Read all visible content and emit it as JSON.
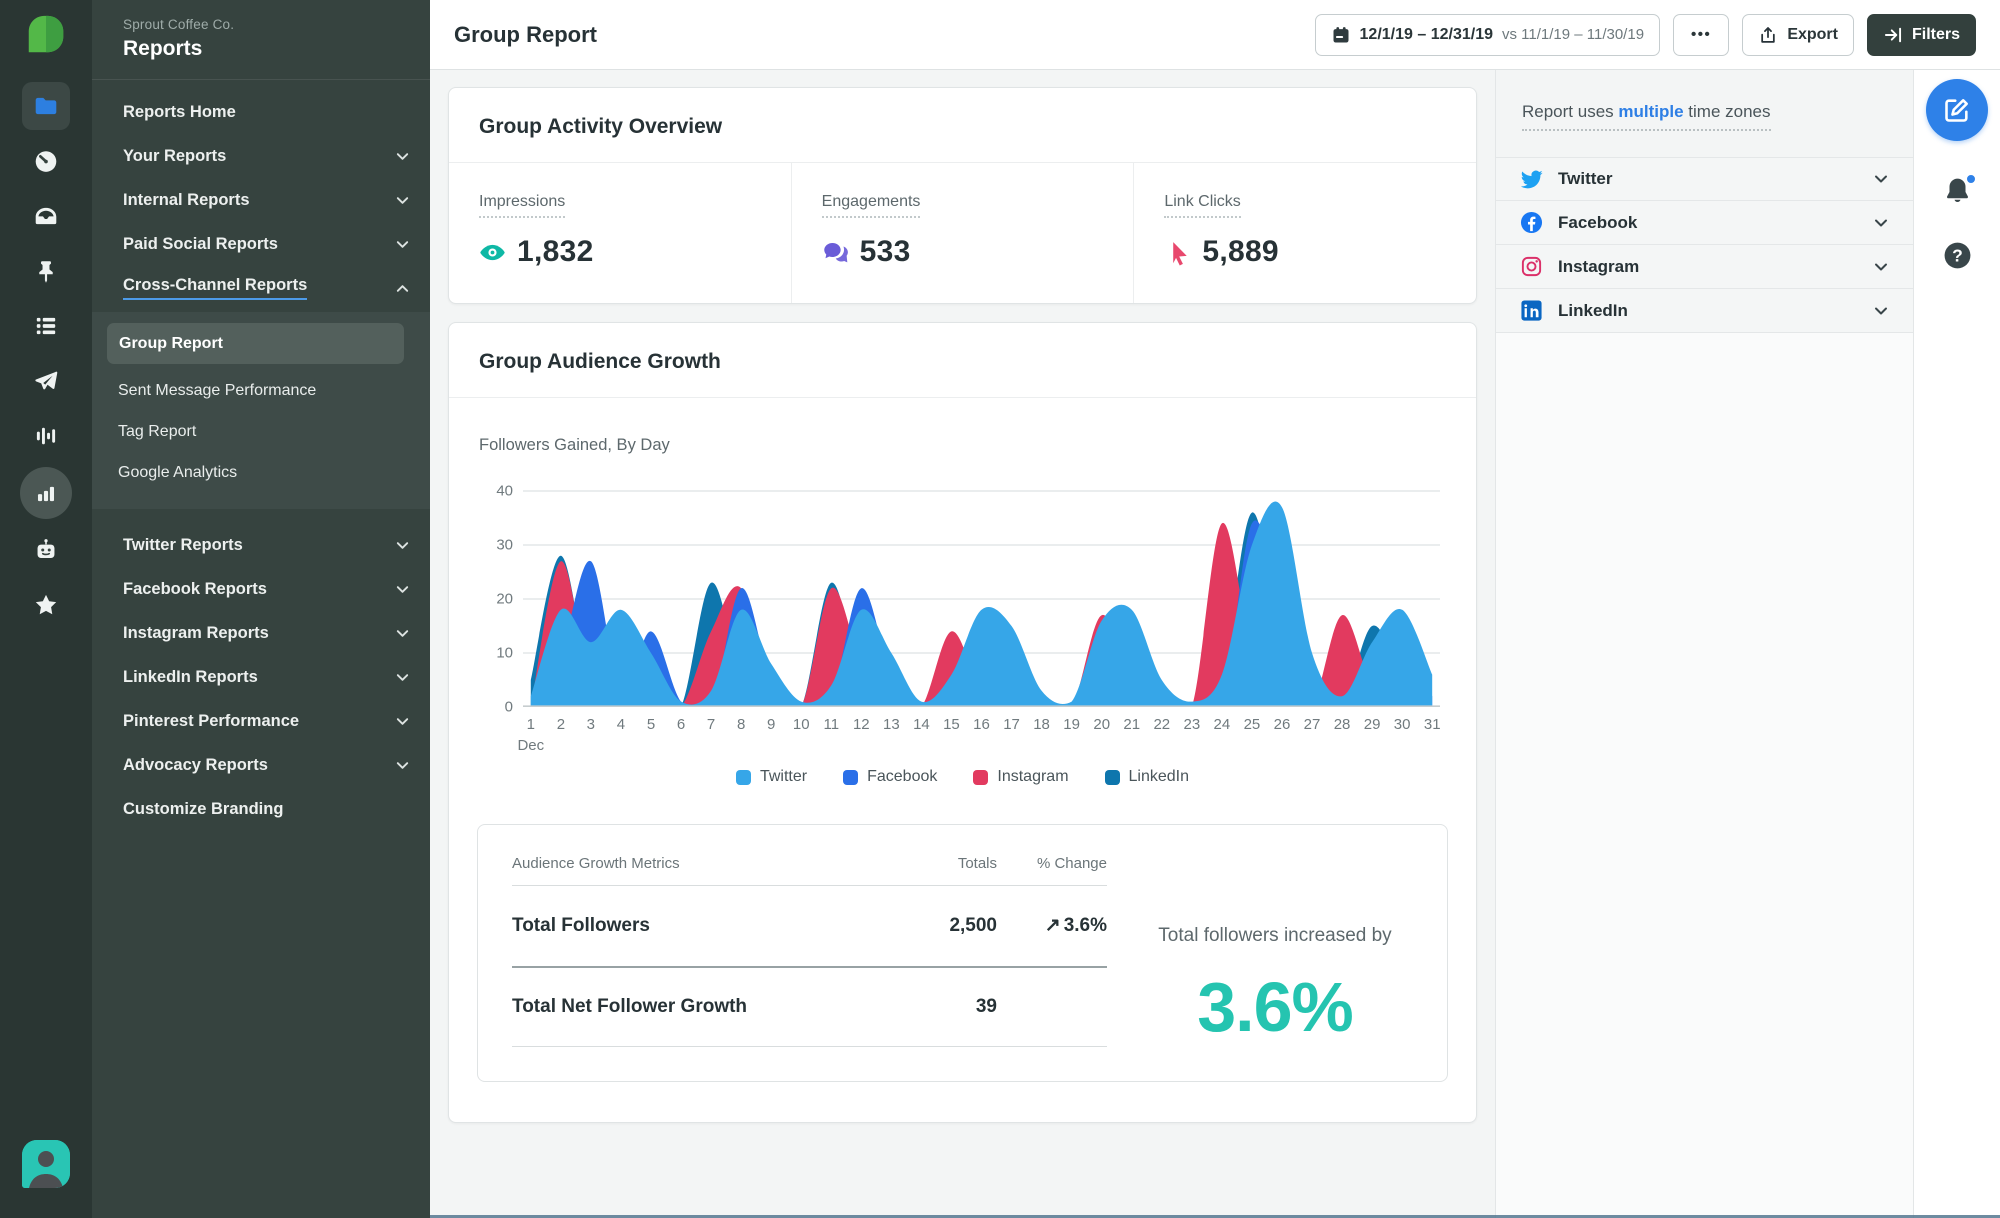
{
  "brand": {
    "company": "Sprout Coffee Co.",
    "section": "Reports"
  },
  "rail": {
    "logo_icon": "sprout-leaf-logo",
    "icons": [
      {
        "name": "folder-icon",
        "active": true,
        "shape": "rounded-square"
      },
      {
        "name": "gauge-icon"
      },
      {
        "name": "inbox-icon"
      },
      {
        "name": "pin-icon"
      },
      {
        "name": "list-icon"
      },
      {
        "name": "paper-plane-icon"
      },
      {
        "name": "waveform-icon"
      },
      {
        "name": "bar-chart-icon",
        "active": true,
        "shape": "circle"
      },
      {
        "name": "robot-icon"
      },
      {
        "name": "star-icon"
      }
    ],
    "avatar_icon": "user-avatar"
  },
  "sidebar": {
    "top_items": [
      {
        "label": "Reports Home"
      },
      {
        "label": "Your Reports",
        "chevron": "down"
      },
      {
        "label": "Internal Reports",
        "chevron": "down"
      },
      {
        "label": "Paid Social Reports",
        "chevron": "down"
      },
      {
        "label": "Cross-Channel Reports",
        "chevron": "up",
        "active": true
      }
    ],
    "sub_items": [
      {
        "label": "Group Report",
        "selected": true
      },
      {
        "label": "Sent Message Performance"
      },
      {
        "label": "Tag Report"
      },
      {
        "label": "Google Analytics"
      }
    ],
    "bottom_items": [
      {
        "label": "Twitter Reports",
        "chevron": "down"
      },
      {
        "label": "Facebook Reports",
        "chevron": "down"
      },
      {
        "label": "Instagram Reports",
        "chevron": "down"
      },
      {
        "label": "LinkedIn Reports",
        "chevron": "down"
      },
      {
        "label": "Pinterest Performance",
        "chevron": "down"
      },
      {
        "label": "Advocacy Reports",
        "chevron": "down"
      },
      {
        "label": "Customize Branding"
      }
    ]
  },
  "header": {
    "title": "Group Report",
    "date_range": "12/1/19 – 12/31/19",
    "compare": "vs 11/1/19 – 11/30/19",
    "more_label": "•••",
    "export_label": "Export",
    "filters_label": "Filters"
  },
  "overview": {
    "title": "Group Activity Overview",
    "metrics": [
      {
        "label": "Impressions",
        "value": "1,832",
        "icon": "eye-icon",
        "color": "#0EB8A5"
      },
      {
        "label": "Engagements",
        "value": "533",
        "icon": "chat-bubbles-icon",
        "color": "#6A5CD8"
      },
      {
        "label": "Link Clicks",
        "value": "5,889",
        "icon": "cursor-click-icon",
        "color": "#E8486D"
      }
    ]
  },
  "growth": {
    "title": "Group Audience Growth"
  },
  "chart_data": {
    "type": "area",
    "title": "Followers Gained, By Day",
    "month_label": "Dec",
    "x": [
      1,
      2,
      3,
      4,
      5,
      6,
      7,
      8,
      9,
      10,
      11,
      12,
      13,
      14,
      15,
      16,
      17,
      18,
      19,
      20,
      21,
      22,
      23,
      24,
      25,
      26,
      27,
      28,
      29,
      30,
      31
    ],
    "ylim": [
      0,
      40
    ],
    "yticks": [
      0,
      10,
      20,
      30,
      40
    ],
    "grid": true,
    "legend_position": "bottom",
    "draw_order": [
      "LinkedIn",
      "Instagram",
      "Facebook",
      "Twitter"
    ],
    "series": [
      {
        "name": "Twitter",
        "color": "#36A6E8",
        "values": [
          2,
          18,
          12,
          18,
          10,
          1,
          3,
          18,
          8,
          1,
          4,
          18,
          10,
          1,
          6,
          18,
          15,
          3,
          1,
          16,
          18,
          5,
          1,
          6,
          30,
          37,
          10,
          2,
          12,
          18,
          6
        ]
      },
      {
        "name": "Facebook",
        "color": "#2A6FE8",
        "values": [
          0,
          10,
          27,
          3,
          14,
          1,
          0,
          22,
          5,
          0,
          2,
          22,
          6,
          0,
          0,
          2,
          1,
          0,
          0,
          4,
          17,
          3,
          0,
          0,
          34,
          20,
          3,
          0,
          8,
          16,
          2
        ]
      },
      {
        "name": "Instagram",
        "color": "#E23A5F",
        "values": [
          0,
          27,
          4,
          0,
          1,
          0,
          14,
          22,
          2,
          0,
          22,
          8,
          0,
          0,
          14,
          3,
          0,
          0,
          0,
          17,
          5,
          0,
          0,
          34,
          10,
          0,
          0,
          17,
          4,
          0,
          0
        ]
      },
      {
        "name": "LinkedIn",
        "color": "#0E76AD",
        "values": [
          5,
          28,
          4,
          0,
          0,
          0,
          23,
          6,
          0,
          0,
          23,
          5,
          0,
          0,
          1,
          2,
          0,
          0,
          0,
          16,
          8,
          0,
          0,
          6,
          36,
          12,
          0,
          0,
          15,
          6,
          0
        ]
      }
    ]
  },
  "table": {
    "headers": [
      "Audience Growth Metrics",
      "Totals",
      "% Change"
    ],
    "rows": [
      {
        "label": "Total Followers",
        "total": "2,500",
        "change": "3.6%",
        "change_icon": "↗"
      },
      {
        "label": "Total Net Follower Growth",
        "total": "39",
        "change": ""
      }
    ]
  },
  "summary": {
    "caption": "Total followers increased by",
    "value": "3.6%"
  },
  "right_panel": {
    "note_prefix": "Report uses ",
    "note_link": "multiple",
    "note_suffix": " time zones",
    "accounts": [
      {
        "label": "Twitter",
        "icon": "twitter-icon"
      },
      {
        "label": "Facebook",
        "icon": "facebook-icon"
      },
      {
        "label": "Instagram",
        "icon": "instagram-icon"
      },
      {
        "label": "LinkedIn",
        "icon": "linkedin-icon"
      }
    ]
  },
  "right_rail": {
    "icons": [
      {
        "name": "compose-icon",
        "style": "primary-circle"
      },
      {
        "name": "bell-icon",
        "badge": true
      },
      {
        "name": "help-icon"
      }
    ]
  },
  "colors": {
    "accent_teal": "#25C4B0",
    "positive_change": "#1FB9A7",
    "link_blue": "#2E7FE5",
    "rail_dark": "#2A3633",
    "sidebar_dark": "#36433F",
    "filters_button_dark": "#33403D"
  }
}
